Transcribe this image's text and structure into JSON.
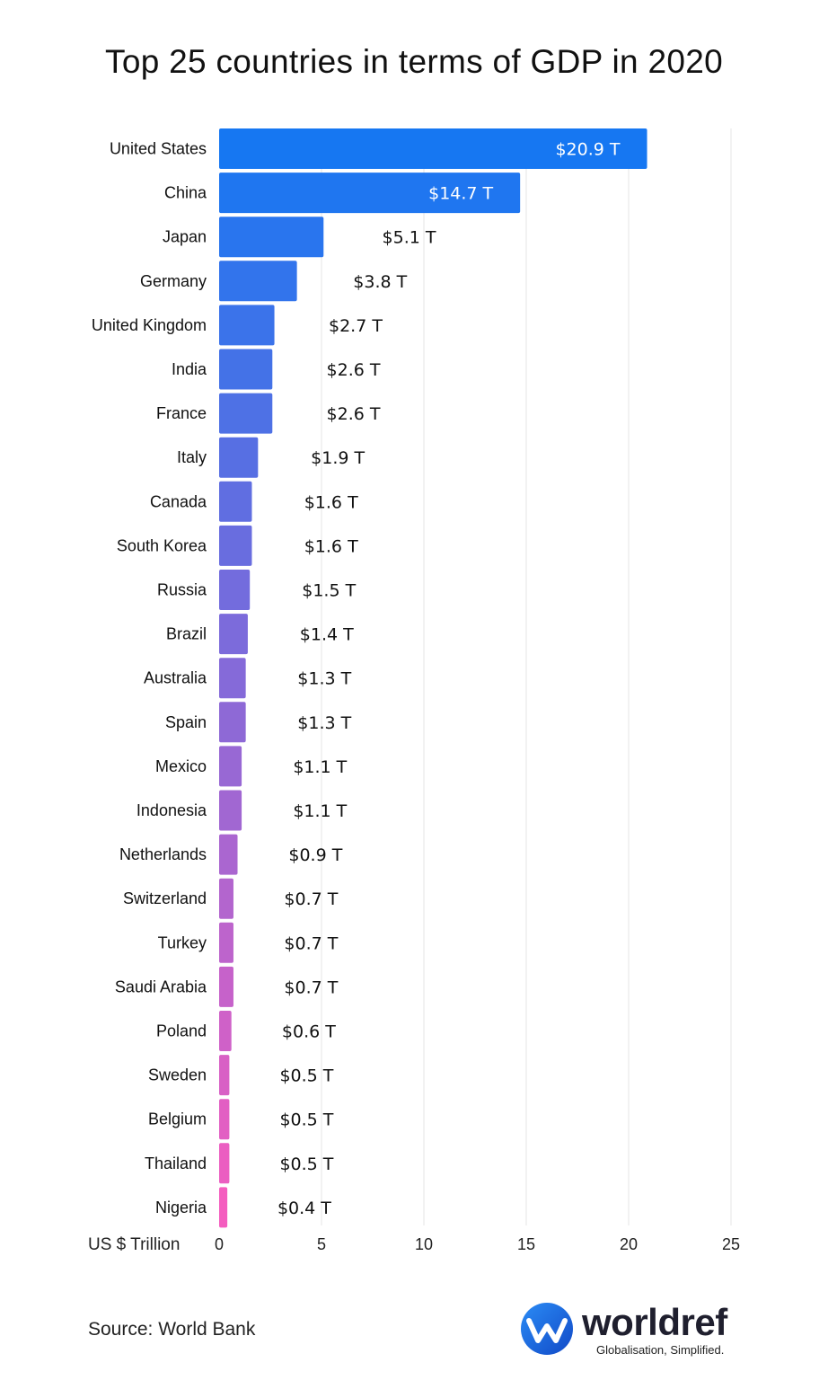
{
  "title": "Top 25 countries in terms of GDP in 2020",
  "source": "Source: World Bank",
  "logo": {
    "name": "worldref",
    "tagline": "Globalisation, Simplified."
  },
  "colors": {
    "bar_start": "#1677f2",
    "bar_end": "#f45dbf",
    "grid": "#e4e4e4",
    "label_inside": "#ffffff",
    "label_outside": "#111111"
  },
  "chart_data": {
    "type": "bar",
    "orientation": "horizontal",
    "title": "Top 25 countries in terms of GDP in 2020",
    "xlabel": "US $ Trillion",
    "ylabel": "",
    "xlim": [
      0,
      25
    ],
    "x_ticks": [
      0,
      5,
      10,
      15,
      20,
      25
    ],
    "grid": true,
    "categories": [
      "United States",
      "China",
      "Japan",
      "Germany",
      "United Kingdom",
      "India",
      "France",
      "Italy",
      "Canada",
      "South Korea",
      "Russia",
      "Brazil",
      "Australia",
      "Spain",
      "Mexico",
      "Indonesia",
      "Netherlands",
      "Switzerland",
      "Turkey",
      "Saudi Arabia",
      "Poland",
      "Sweden",
      "Belgium",
      "Thailand",
      "Nigeria"
    ],
    "values": [
      20.9,
      14.7,
      5.1,
      3.8,
      2.7,
      2.6,
      2.6,
      1.9,
      1.6,
      1.6,
      1.5,
      1.4,
      1.3,
      1.3,
      1.1,
      1.1,
      0.9,
      0.7,
      0.7,
      0.7,
      0.6,
      0.5,
      0.5,
      0.5,
      0.4
    ],
    "data_labels": [
      "$20.9 T",
      "$14.7 T",
      "$5.1 T",
      "$3.8 T",
      "$2.7 T",
      "$2.6 T",
      "$2.6 T",
      "$1.9 T",
      "$1.6 T",
      "$1.6 T",
      "$1.5 T",
      "$1.4 T",
      "$1.3 T",
      "$1.3 T",
      "$1.1 T",
      "$1.1 T",
      "$0.9 T",
      "$0.7 T",
      "$0.7 T",
      "$0.7 T",
      "$0.6 T",
      "$0.5 T",
      "$0.5 T",
      "$0.5 T",
      "$0.4 T"
    ]
  }
}
